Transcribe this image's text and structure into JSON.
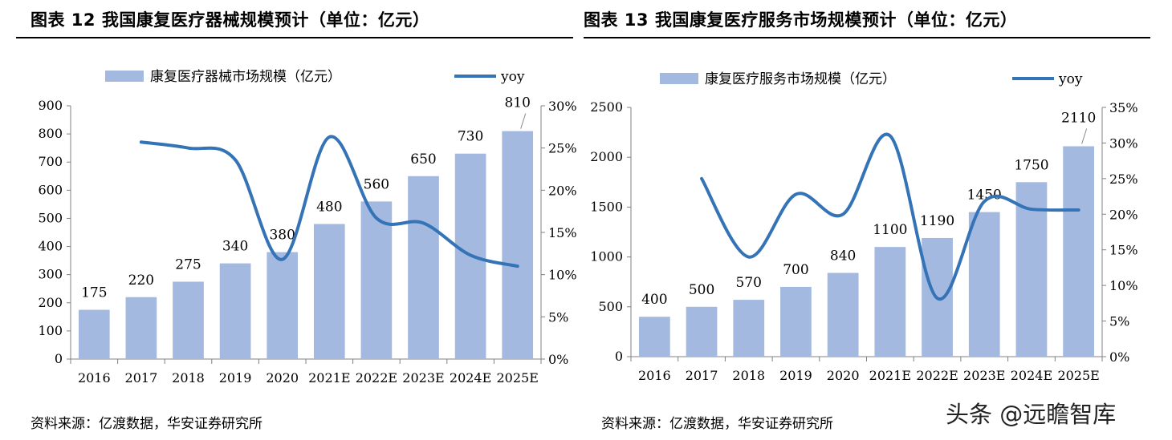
{
  "left_panel": {
    "title": "图表  12 我国康复医疗器械规模预计（单位：亿元）",
    "source": "资料来源：亿渡数据，华安证券研究所"
  },
  "right_panel": {
    "title": "图表  13 我国康复医疗服务市场规模预计（单位：亿元）",
    "source": "资料来源：亿渡数据，华安证券研究所"
  },
  "watermark": "头条 @远瞻智库",
  "colors": {
    "bar": "#a3b9e0",
    "line": "#3573b7",
    "axis": "#808080"
  },
  "chart_data": [
    {
      "type": "bar",
      "title": "",
      "categories": [
        "2016",
        "2017",
        "2018",
        "2019",
        "2020",
        "2021E",
        "2022E",
        "2023E",
        "2024E",
        "2025E"
      ],
      "series": [
        {
          "name": "康复医疗器械市场规模（亿元）",
          "type": "bar",
          "axis": "left",
          "values": [
            175,
            220,
            275,
            340,
            380,
            480,
            560,
            650,
            730,
            810
          ]
        },
        {
          "name": "yoy",
          "type": "line",
          "axis": "right",
          "values": [
            null,
            25.7,
            25.0,
            23.6,
            11.8,
            26.3,
            16.7,
            16.1,
            12.3,
            11.0
          ]
        }
      ],
      "ylim": [
        0,
        900
      ],
      "yticks": [
        "0",
        "100",
        "200",
        "300",
        "400",
        "500",
        "600",
        "700",
        "800",
        "900"
      ],
      "y2lim": [
        0,
        30
      ],
      "y2ticks": [
        "0%",
        "5%",
        "10%",
        "15%",
        "20%",
        "25%",
        "30%"
      ],
      "xlabel": "",
      "ylabel": "",
      "legend": "top"
    },
    {
      "type": "bar",
      "title": "",
      "categories": [
        "2016",
        "2017",
        "2018",
        "2019",
        "2020",
        "2021E",
        "2022E",
        "2023E",
        "2024E",
        "2025E"
      ],
      "series": [
        {
          "name": "康复医疗服务市场规模（亿元）",
          "type": "bar",
          "axis": "left",
          "values": [
            400,
            500,
            570,
            700,
            840,
            1100,
            1190,
            1450,
            1750,
            2110
          ]
        },
        {
          "name": "yoy",
          "type": "line",
          "axis": "right",
          "values": [
            null,
            25.0,
            14.0,
            22.8,
            20.0,
            31.0,
            8.2,
            21.8,
            20.7,
            20.6
          ]
        }
      ],
      "ylim": [
        0,
        2500
      ],
      "yticks": [
        "0",
        "500",
        "1000",
        "1500",
        "2000",
        "2500"
      ],
      "y2lim": [
        0,
        35
      ],
      "y2ticks": [
        "0%",
        "5%",
        "10%",
        "15%",
        "20%",
        "25%",
        "30%",
        "35%"
      ],
      "xlabel": "",
      "ylabel": "",
      "legend": "top"
    }
  ]
}
